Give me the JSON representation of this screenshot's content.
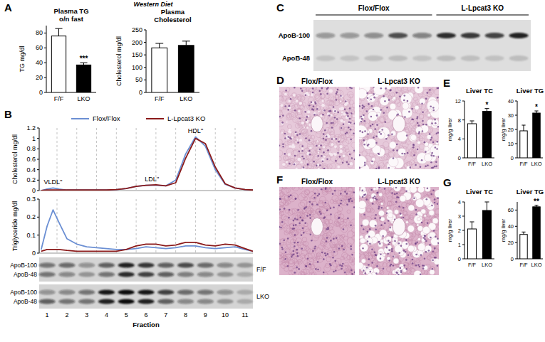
{
  "panel_labels": [
    "A",
    "B",
    "C",
    "D",
    "E",
    "F",
    "G"
  ],
  "header": "Western Diet",
  "chart_data": [
    {
      "type": "bar",
      "title": [
        "Plasma TG",
        "o/n fast"
      ],
      "y_label": "TG mg/dl",
      "categories": [
        "F/F",
        "LKO"
      ],
      "values": [
        76,
        37
      ],
      "errors": [
        10,
        3
      ],
      "colors": [
        "#ffffff",
        "#000000"
      ],
      "ylim": [
        0,
        90
      ],
      "yticks": [
        0,
        20,
        40,
        60,
        80
      ],
      "annotations": [
        {
          "text": "***",
          "category": "LKO"
        }
      ]
    },
    {
      "type": "bar",
      "title": [
        "Plasma",
        "Cholesterol"
      ],
      "y_label": "Cholesterol mg/dl",
      "categories": [
        "F/F",
        "LKO"
      ],
      "values": [
        178,
        188
      ],
      "errors": [
        18,
        17
      ],
      "colors": [
        "#ffffff",
        "#000000"
      ],
      "ylim": [
        0,
        250
      ],
      "yticks": [
        0,
        50,
        100,
        150,
        200,
        250
      ]
    },
    {
      "type": "line",
      "y_label": "Cholesterol mg/dl",
      "x": [
        0.7,
        1,
        1.3,
        1.6,
        2,
        2.5,
        3,
        3.5,
        4,
        4.5,
        5,
        5.5,
        6,
        6.5,
        7,
        7.5,
        8,
        8.5,
        9,
        9.5,
        10,
        10.5,
        11,
        11.4
      ],
      "series": [
        {
          "name": "Flox/Flox",
          "color": "#6b8fd3",
          "values": [
            0,
            0.03,
            0.05,
            0.03,
            0.01,
            0.01,
            0.01,
            0.01,
            0.01,
            0.02,
            0.04,
            0.08,
            0.1,
            0.1,
            0.09,
            0.2,
            0.7,
            1.03,
            0.85,
            0.4,
            0.12,
            0.05,
            0.02,
            0.01
          ]
        },
        {
          "name": "L-Lpcat3 KO",
          "color": "#8b1a1a",
          "values": [
            0,
            0.01,
            0.01,
            0.01,
            0.01,
            0.01,
            0.01,
            0.01,
            0.01,
            0.02,
            0.04,
            0.08,
            0.1,
            0.11,
            0.09,
            0.15,
            0.62,
            1,
            0.9,
            0.45,
            0.13,
            0.05,
            0.02,
            0.01
          ]
        }
      ],
      "xlim": [
        0.6,
        11.4
      ],
      "xticks": [
        1,
        2,
        3,
        4,
        5,
        6,
        7,
        8,
        9,
        10,
        11
      ],
      "ylim": [
        0,
        1.2
      ],
      "yticks": [
        0,
        0.2,
        0.4,
        0.6,
        0.8,
        1,
        1.2
      ],
      "grid": true,
      "legend": "top",
      "tick_labels": "y",
      "annotations": [
        {
          "text": "VLDL''",
          "x": 1.3
        },
        {
          "text": "LDL''",
          "x": 6.3
        },
        {
          "text": "HDL''",
          "x": 8.5
        }
      ]
    },
    {
      "type": "line",
      "y_label": "Triglyceride mg/dl",
      "x_label": "Fraction",
      "x": [
        0.7,
        1,
        1.3,
        1.6,
        2,
        2.5,
        3,
        3.5,
        4,
        4.5,
        5,
        5.5,
        6,
        6.5,
        7,
        7.5,
        8,
        8.5,
        9,
        9.5,
        10,
        10.5,
        11,
        11.4
      ],
      "series": [
        {
          "color": "#6b8fd3",
          "values": [
            0.02,
            0.15,
            0.24,
            0.17,
            0.08,
            0.05,
            0.035,
            0.03,
            0.025,
            0.02,
            0.02,
            0.025,
            0.035,
            0.03,
            0.025,
            0.03,
            0.04,
            0.04,
            0.03,
            0.025,
            0.03,
            0.035,
            0.02,
            0.01
          ]
        },
        {
          "color": "#8b1a1a",
          "values": [
            0.01,
            0.02,
            0.02,
            0.02,
            0.015,
            0.01,
            0.01,
            0.01,
            0.01,
            0.01,
            0.02,
            0.04,
            0.05,
            0.05,
            0.04,
            0.045,
            0.06,
            0.06,
            0.045,
            0.04,
            0.05,
            0.045,
            0.025,
            0.01
          ]
        }
      ],
      "xlim": [
        0.6,
        11.4
      ],
      "xticks": [
        1,
        2,
        3,
        4,
        5,
        6,
        7,
        8,
        9,
        10,
        11
      ],
      "ylim": [
        0,
        0.3
      ],
      "yticks": [
        0,
        0.1,
        0.2,
        0.3
      ],
      "grid": true
    },
    {
      "type": "bar",
      "title": [
        "Liver TC"
      ],
      "y_label": "mg/g liver",
      "categories": [
        "F/F",
        "LKO"
      ],
      "values": [
        7.2,
        9.8
      ],
      "errors": [
        0.6,
        0.6
      ],
      "colors": [
        "#ffffff",
        "#000000"
      ],
      "ylim": [
        0,
        12
      ],
      "yticks": [
        0,
        4,
        8,
        12
      ],
      "annotations": [
        {
          "text": "*",
          "category": "LKO"
        }
      ]
    },
    {
      "type": "bar",
      "title": [
        "Liver TG"
      ],
      "y_label": "mg/g liver",
      "categories": [
        "F/F",
        "LKO"
      ],
      "values": [
        19,
        31.5
      ],
      "errors": [
        4,
        1.5
      ],
      "colors": [
        "#ffffff",
        "#000000"
      ],
      "ylim": [
        0,
        40
      ],
      "yticks": [
        0,
        10,
        20,
        30,
        40
      ],
      "annotations": [
        {
          "text": "*",
          "category": "LKO"
        }
      ]
    },
    {
      "type": "bar",
      "title": [
        "Liver TC"
      ],
      "y_label": "mg/g liver",
      "categories": [
        "F/F",
        "LKO"
      ],
      "values": [
        2.1,
        3.4
      ],
      "errors": [
        0.5,
        0.6
      ],
      "colors": [
        "#ffffff",
        "#000000"
      ],
      "ylim": [
        0,
        4
      ],
      "yticks": [
        0,
        1,
        2,
        3,
        4
      ]
    },
    {
      "type": "bar",
      "title": [
        "Liver TG"
      ],
      "y_label": "mg/g liver",
      "categories": [
        "F/F",
        "LKO"
      ],
      "values": [
        30,
        64
      ],
      "errors": [
        3,
        2
      ],
      "colors": [
        "#ffffff",
        "#000000"
      ],
      "ylim": [
        0,
        70
      ],
      "yticks": [
        0,
        20,
        40,
        60
      ],
      "annotations": [
        {
          "text": "**",
          "category": "LKO"
        }
      ]
    }
  ],
  "blots": [
    {
      "band_labels": [
        "ApoB-100",
        "ApoB-48"
      ],
      "rows": [
        {
          "label": "F/F",
          "intensity": [
            [
              0.5,
              0.55,
              0.35,
              0.6,
              0.9,
              0.8,
              0.6,
              0.7,
              0.55,
              0.4,
              0.3
            ],
            [
              0.5,
              0.4,
              0.3,
              0.5,
              0.85,
              0.75,
              0.6,
              0.45,
              0.4,
              0.3,
              0.2
            ]
          ]
        },
        {
          "label": "LKO",
          "intensity": [
            [
              0.35,
              0.4,
              0.5,
              0.95,
              1,
              0.95,
              0.75,
              0.55,
              0.5,
              0.35,
              0.2
            ],
            [
              0.6,
              0.5,
              0.5,
              0.9,
              1,
              0.9,
              0.6,
              0.4,
              0.4,
              0.3,
              0.2
            ]
          ]
        }
      ]
    },
    {
      "band_labels": [
        "ApoB-100",
        "ApoB-48"
      ],
      "groups": [
        {
          "label": "Flox/Flox",
          "intensity": [
            [
              0.35,
              0.35,
              0.4,
              0.7,
              0.45
            ],
            [
              0.12,
              0.12,
              0.14,
              0.15,
              0.12
            ]
          ]
        },
        {
          "label": "L-Lpcat3 KO",
          "intensity": [
            [
              0.85,
              0.8,
              0.75,
              0.9
            ],
            [
              0.15,
              0.14,
              0.13,
              0.15
            ]
          ]
        }
      ]
    }
  ],
  "histology": [
    {
      "labels": [
        "Flox/Flox",
        "L-Lpcat3 KO"
      ]
    },
    {
      "labels": [
        "Flox/Flox",
        "L-Lpcat3 KO"
      ]
    }
  ]
}
